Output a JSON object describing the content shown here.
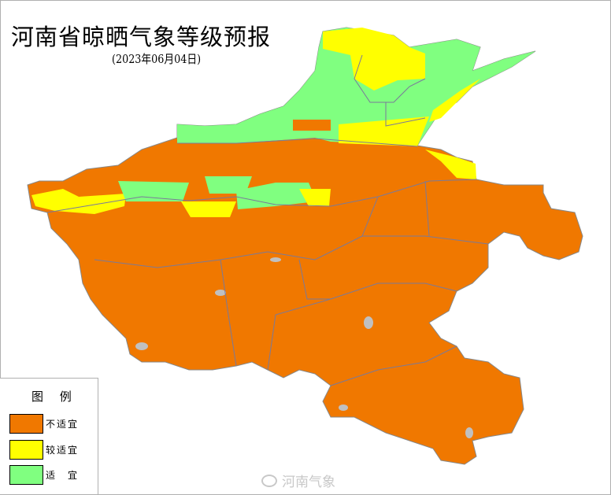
{
  "title": "河南省晾晒气象等级预报",
  "subtitle": "(2023年06月04日)",
  "legend": {
    "title": "图 例",
    "items": [
      {
        "label": "不适宜",
        "color": "#F07800"
      },
      {
        "label": "较适宜",
        "color": "#FFFF00"
      },
      {
        "label": "适　宜",
        "color": "#80FF80"
      }
    ]
  },
  "watermark": "河南气象",
  "colors": {
    "boundary": "#7a7a9a",
    "water": "#c0c0c0"
  }
}
